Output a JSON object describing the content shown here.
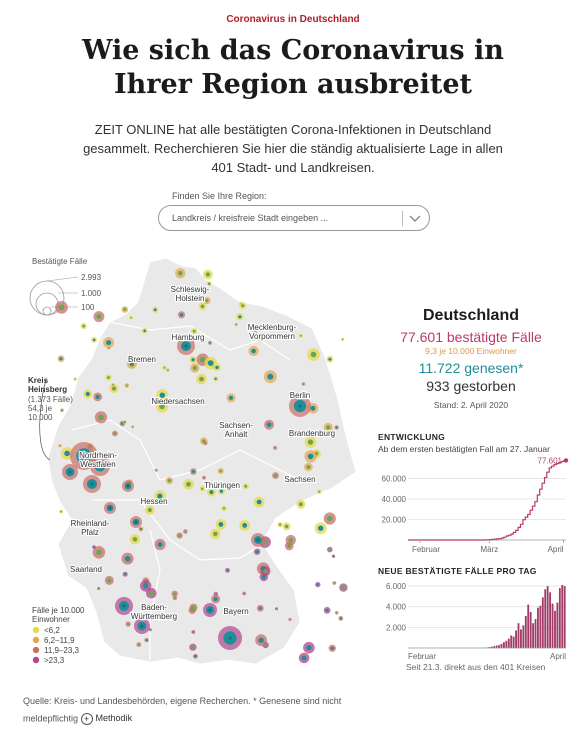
{
  "kicker": "Coronavirus in Deutschland",
  "headline": "Wie sich das Coronavirus in Ihrer Region ausbreitet",
  "intro": "ZEIT ONLINE hat alle bestätigten Corona-Infektionen in Deutschland gesammelt. Recherchieren Sie hier die ständig aktualisierte Lage in allen 401 Stadt- und Landkreisen.",
  "search": {
    "label": "Finden Sie Ihre Region:",
    "placeholder": "Landkreis / kreisfreie Stadt eingeben ..."
  },
  "map": {
    "size_legend": {
      "title": "Bestätigte Fälle",
      "values": [
        "2.993",
        "1.000",
        "100"
      ]
    },
    "callout": {
      "title_line1": "Kreis",
      "title_line2": "Heinsberg",
      "line3": "(1.373 Fälle)",
      "line4": "54,3 je",
      "line5": "10.000"
    },
    "regions": [
      {
        "name": "Schleswig-",
        "name2": "Holstein"
      },
      {
        "name": "Hamburg"
      },
      {
        "name": "Mecklenburg-",
        "name2": "Vorpommern"
      },
      {
        "name": "Bremen"
      },
      {
        "name": "Berlin"
      },
      {
        "name": "Niedersachsen"
      },
      {
        "name": "Brandenburg"
      },
      {
        "name": "Sachsen-",
        "name2": "Anhalt"
      },
      {
        "name": "Nordrhein-",
        "name2": "Westfalen"
      },
      {
        "name": "Sachsen"
      },
      {
        "name": "Thüringen"
      },
      {
        "name": "Hessen"
      },
      {
        "name": "Rheinland-",
        "name2": "Pfalz"
      },
      {
        "name": "Saarland"
      },
      {
        "name": "Baden-",
        "name2": "Württemberg"
      },
      {
        "name": "Bayern"
      }
    ],
    "color_legend": {
      "title_line1": "Fälle je 10.000",
      "title_line2": "Einwohner",
      "items": [
        {
          "label": "<6,2",
          "color": "#e8d84a"
        },
        {
          "label": "6,2–11,9",
          "color": "#e3a850"
        },
        {
          "label": "11,9–23,3",
          "color": "#c96f6a"
        },
        {
          "label": ">23,3",
          "color": "#b0468c"
        }
      ]
    },
    "colors": {
      "land": "#e9e9e9",
      "border": "#ffffff",
      "green": "#6aa84f",
      "teal": "#1c8f9a",
      "dark": "#1e6c73"
    }
  },
  "summary": {
    "country": "Deutschland",
    "confirmed": "77.601 bestätigte Fälle",
    "confirmed_rate": "9,3 je 10.000 Einwohner",
    "recovered": "11.722 genesen*",
    "deaths": "933 gestorben",
    "stand": "Stand: 2. April 2020",
    "colors": {
      "confirmed": "#b83b6c",
      "recovered": "#1c8f9a",
      "rate": "#d79a4a"
    }
  },
  "chart_data": [
    {
      "type": "line",
      "title": "ENTWICKLUNG",
      "subtitle": "Ab dem ersten bestätigten Fall am 27. Januar",
      "x": [
        0,
        5,
        10,
        15,
        20,
        25,
        30,
        31,
        32,
        33,
        34,
        35,
        36,
        37,
        38,
        39,
        40,
        41,
        42,
        43,
        44,
        45,
        46,
        47,
        48,
        49,
        50,
        51,
        52,
        53,
        54,
        55,
        56,
        57,
        58,
        59,
        60,
        61,
        62,
        63,
        64,
        65,
        66
      ],
      "values": [
        1,
        12,
        14,
        16,
        16,
        16,
        17,
        47,
        130,
        230,
        400,
        640,
        850,
        1100,
        1300,
        1900,
        2700,
        3900,
        4600,
        5800,
        7400,
        9400,
        12300,
        15300,
        19800,
        22300,
        24900,
        29100,
        33000,
        37300,
        43900,
        49500,
        55400,
        60700,
        66100,
        70300,
        72000,
        73500,
        74500,
        75500,
        76500,
        77200,
        77601
      ],
      "x_ticks": [
        "Februar",
        "März",
        "April"
      ],
      "y_ticks": [
        "20.000",
        "40.000",
        "60.000"
      ],
      "ylim": [
        0,
        78000
      ],
      "end_label": "77.601",
      "color": "#b83b6c"
    },
    {
      "type": "bar",
      "title": "NEUE BESTÄTIGTE FÄLLE PRO TAG",
      "x_ticks": [
        "Februar",
        "April"
      ],
      "y_ticks": [
        "2.000",
        "4.000",
        "6.000"
      ],
      "ylim": [
        0,
        6200
      ],
      "values": [
        0,
        0,
        0,
        0,
        0,
        0,
        0,
        0,
        0,
        0,
        0,
        0,
        0,
        0,
        0,
        0,
        0,
        0,
        0,
        0,
        0,
        0,
        0,
        0,
        0,
        0,
        0,
        0,
        0,
        0,
        20,
        30,
        50,
        90,
        130,
        170,
        240,
        270,
        400,
        560,
        700,
        900,
        1200,
        1100,
        1700,
        2400,
        1800,
        2200,
        3100,
        4200,
        3500,
        2400,
        2800,
        3900,
        4100,
        4900,
        5700,
        6000,
        5400,
        4300,
        3600,
        4400,
        5800,
        6100,
        6000
      ],
      "note": "Seit 21.3. direkt aus den 401 Kreisen",
      "color": "#a13b67"
    }
  ],
  "footer": {
    "text": "Quelle: Kreis- und Landesbehörden, eigene Recherchen. * Genesene sind nicht meldepflichtig",
    "method_label": "Methodik"
  }
}
